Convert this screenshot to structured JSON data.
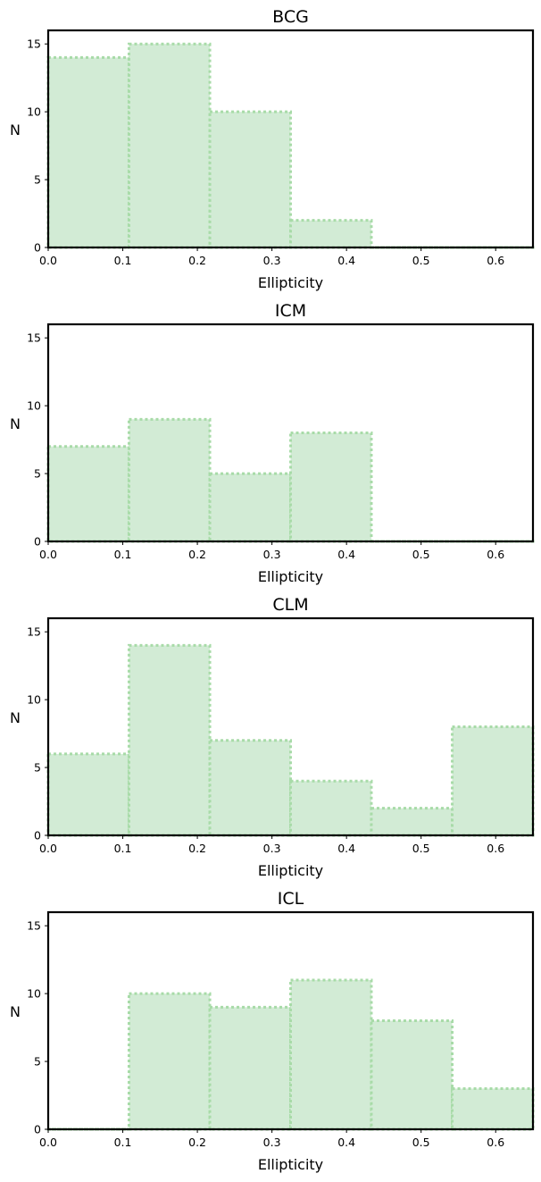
{
  "chart_data": [
    {
      "type": "bar",
      "title": "BCG",
      "xlabel": "Ellipticity",
      "ylabel": "N",
      "xlim": [
        0,
        0.65
      ],
      "ylim": [
        0,
        16
      ],
      "xticks": [
        "0.0",
        "0.1",
        "0.2",
        "0.3",
        "0.4",
        "0.5",
        "0.6"
      ],
      "yticks": [
        "0",
        "5",
        "10",
        "15"
      ],
      "bin_edges": [
        0,
        0.1083,
        0.2167,
        0.325,
        0.4333,
        0.5417,
        0.65
      ],
      "values": [
        14,
        15,
        10,
        2,
        0,
        0
      ],
      "color": "#d2ebd5",
      "edge_color": "#a8dba8"
    },
    {
      "type": "bar",
      "title": "ICM",
      "xlabel": "Ellipticity",
      "ylabel": "N",
      "xlim": [
        0,
        0.65
      ],
      "ylim": [
        0,
        16
      ],
      "xticks": [
        "0.0",
        "0.1",
        "0.2",
        "0.3",
        "0.4",
        "0.5",
        "0.6"
      ],
      "yticks": [
        "0",
        "5",
        "10",
        "15"
      ],
      "bin_edges": [
        0,
        0.1083,
        0.2167,
        0.325,
        0.4333,
        0.5417,
        0.65
      ],
      "values": [
        7,
        9,
        5,
        8,
        0,
        0
      ],
      "color": "#d2ebd5",
      "edge_color": "#a8dba8"
    },
    {
      "type": "bar",
      "title": "CLM",
      "xlabel": "Ellipticity",
      "ylabel": "N",
      "xlim": [
        0,
        0.65
      ],
      "ylim": [
        0,
        16
      ],
      "xticks": [
        "0.0",
        "0.1",
        "0.2",
        "0.3",
        "0.4",
        "0.5",
        "0.6"
      ],
      "yticks": [
        "0",
        "5",
        "10",
        "15"
      ],
      "bin_edges": [
        0,
        0.1083,
        0.2167,
        0.325,
        0.4333,
        0.5417,
        0.65
      ],
      "values": [
        6,
        14,
        7,
        4,
        2,
        8
      ],
      "color": "#d2ebd5",
      "edge_color": "#a8dba8"
    },
    {
      "type": "bar",
      "title": "ICL",
      "xlabel": "Ellipticity",
      "ylabel": "N",
      "xlim": [
        0,
        0.65
      ],
      "ylim": [
        0,
        16
      ],
      "xticks": [
        "0.0",
        "0.1",
        "0.2",
        "0.3",
        "0.4",
        "0.5",
        "0.6"
      ],
      "yticks": [
        "0",
        "5",
        "10",
        "15"
      ],
      "bin_edges": [
        0,
        0.1083,
        0.2167,
        0.325,
        0.4333,
        0.5417,
        0.65
      ],
      "values": [
        0,
        10,
        9,
        11,
        8,
        3
      ],
      "color": "#d2ebd5",
      "edge_color": "#a8dba8"
    }
  ]
}
